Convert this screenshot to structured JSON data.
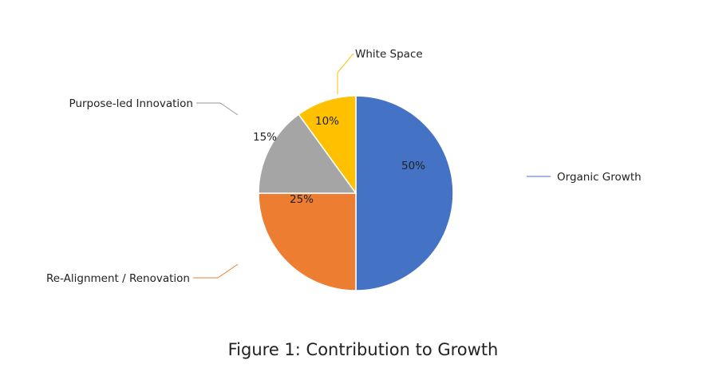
{
  "chart_data": {
    "type": "pie",
    "caption": "Figure 1: Contribution to Growth",
    "slices": [
      {
        "label": "Organic Growth",
        "value": 50,
        "value_label": "50%",
        "color": "#4472C4"
      },
      {
        "label": "Re-Alignment / Renovation",
        "value": 25,
        "value_label": "25%",
        "color": "#ED7D31"
      },
      {
        "label": "Purpose-led Innovation",
        "value": 15,
        "value_label": "15%",
        "color": "#A5A5A5"
      },
      {
        "label": "White Space",
        "value": 10,
        "value_label": "10%",
        "color": "#FFC000"
      }
    ],
    "start_angle": "12 o'clock",
    "direction": "clockwise",
    "legend": "none",
    "labels": "callout lines to category names"
  }
}
